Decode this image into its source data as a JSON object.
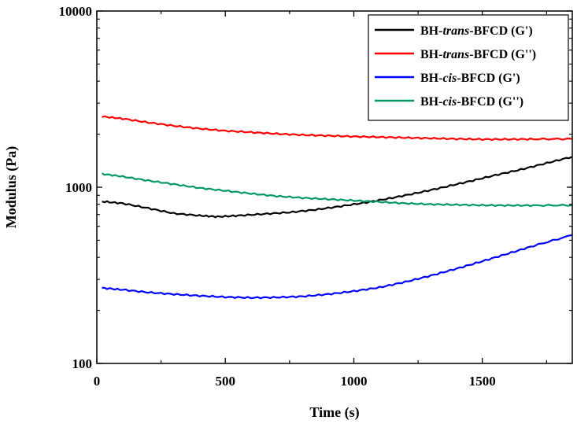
{
  "chart_data": {
    "type": "line",
    "xlabel": "Time (s)",
    "ylabel": "Modulus (Pa)",
    "x_scale": "linear",
    "y_scale": "log",
    "xlim": [
      0,
      1850
    ],
    "ylim": [
      100,
      10000
    ],
    "x_ticks": [
      0,
      500,
      1000,
      1500
    ],
    "x_tick_labels": [
      "0",
      "500",
      "1000",
      "1500"
    ],
    "y_ticks": [
      100,
      1000,
      10000
    ],
    "y_tick_labels": [
      "100",
      "1000",
      "10000"
    ],
    "legend_position": "top-right",
    "grid": false,
    "series": [
      {
        "name_parts": [
          {
            "t": "BH-",
            "i": false
          },
          {
            "t": "trans",
            "i": true
          },
          {
            "t": "-BFCD (G')",
            "i": false
          }
        ],
        "color": "#000000",
        "x": [
          20,
          100,
          200,
          300,
          400,
          470,
          550,
          650,
          750,
          850,
          950,
          1050,
          1150,
          1250,
          1350,
          1450,
          1550,
          1650,
          1750,
          1850
        ],
        "values": [
          830,
          810,
          760,
          710,
          690,
          680,
          690,
          705,
          720,
          745,
          780,
          820,
          870,
          930,
          1000,
          1080,
          1170,
          1260,
          1370,
          1490
        ]
      },
      {
        "name_parts": [
          {
            "t": "BH-",
            "i": false
          },
          {
            "t": "trans",
            "i": true
          },
          {
            "t": "-BFCD (G'')",
            "i": false
          }
        ],
        "color": "#ff0000",
        "x": [
          20,
          100,
          200,
          300,
          400,
          500,
          600,
          700,
          800,
          900,
          1000,
          1100,
          1200,
          1300,
          1400,
          1500,
          1600,
          1700,
          1850
        ],
        "values": [
          2520,
          2450,
          2330,
          2230,
          2150,
          2090,
          2050,
          2010,
          1980,
          1960,
          1940,
          1925,
          1910,
          1895,
          1880,
          1870,
          1870,
          1875,
          1880
        ]
      },
      {
        "name_parts": [
          {
            "t": "BH-",
            "i": false
          },
          {
            "t": "cis",
            "i": true
          },
          {
            "t": "-BFCD (G')",
            "i": false
          }
        ],
        "color": "#0000ff",
        "x": [
          20,
          100,
          200,
          300,
          400,
          500,
          600,
          700,
          800,
          900,
          1000,
          1100,
          1200,
          1300,
          1400,
          1500,
          1600,
          1700,
          1850
        ],
        "values": [
          268,
          262,
          253,
          247,
          242,
          238,
          236,
          237,
          240,
          247,
          257,
          270,
          290,
          315,
          345,
          380,
          420,
          465,
          535
        ]
      },
      {
        "name_parts": [
          {
            "t": "BH-",
            "i": false
          },
          {
            "t": "cis",
            "i": true
          },
          {
            "t": "-BFCD (G'')",
            "i": false
          }
        ],
        "color": "#009966",
        "x": [
          20,
          100,
          200,
          300,
          400,
          500,
          600,
          700,
          800,
          900,
          1000,
          1100,
          1200,
          1300,
          1400,
          1500,
          1600,
          1700,
          1850
        ],
        "values": [
          1190,
          1150,
          1090,
          1040,
          990,
          955,
          920,
          890,
          870,
          855,
          840,
          825,
          810,
          800,
          795,
          790,
          788,
          788,
          790
        ]
      }
    ]
  }
}
